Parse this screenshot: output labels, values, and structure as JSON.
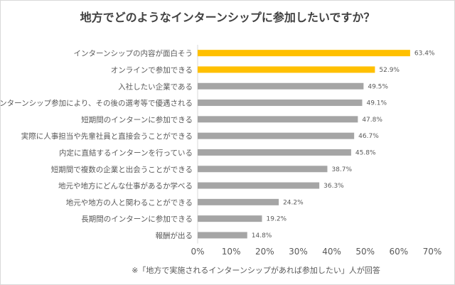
{
  "chart_data": {
    "type": "bar",
    "orientation": "horizontal",
    "title": "地方でどのようなインターンシップに参加したいですか？",
    "categories": [
      "インターンシップの内容が面白そう",
      "オンラインで参加できる",
      "入社したい企業である",
      "インターンシップ参加により、その後の選考等で優遇される",
      "短期間のインターンに参加できる",
      "実際に人事担当や先輩社員と直接会うことができる",
      "内定に直結するインターンを行っている",
      "短期間で複数の企業と出会うことができる",
      "地元や地方にどんな仕事があるか学べる",
      "地元や地方の人と関わることができる",
      "長期間のインターンに参加できる",
      "報酬が出る"
    ],
    "values": [
      63.4,
      52.9,
      49.5,
      49.1,
      47.8,
      46.7,
      45.8,
      38.7,
      36.3,
      24.2,
      19.2,
      14.8
    ],
    "data_labels": [
      "63.4%",
      "52.9%",
      "49.5%",
      "49.1%",
      "47.8%",
      "46.7%",
      "45.8%",
      "38.7%",
      "36.3%",
      "24.2%",
      "19.2%",
      "14.8%"
    ],
    "highlight_count": 2,
    "colors": {
      "highlight": "#FFC000",
      "default": "#A5A5A5"
    },
    "xlim": [
      0,
      70
    ],
    "x_ticks": [
      "0%",
      "10%",
      "20%",
      "30%",
      "40%",
      "50%",
      "60%",
      "70%"
    ],
    "grid": false,
    "legend": "none",
    "footnote": "※「地方で実施されるインターンシップがあれば参加したい」人が回答"
  }
}
